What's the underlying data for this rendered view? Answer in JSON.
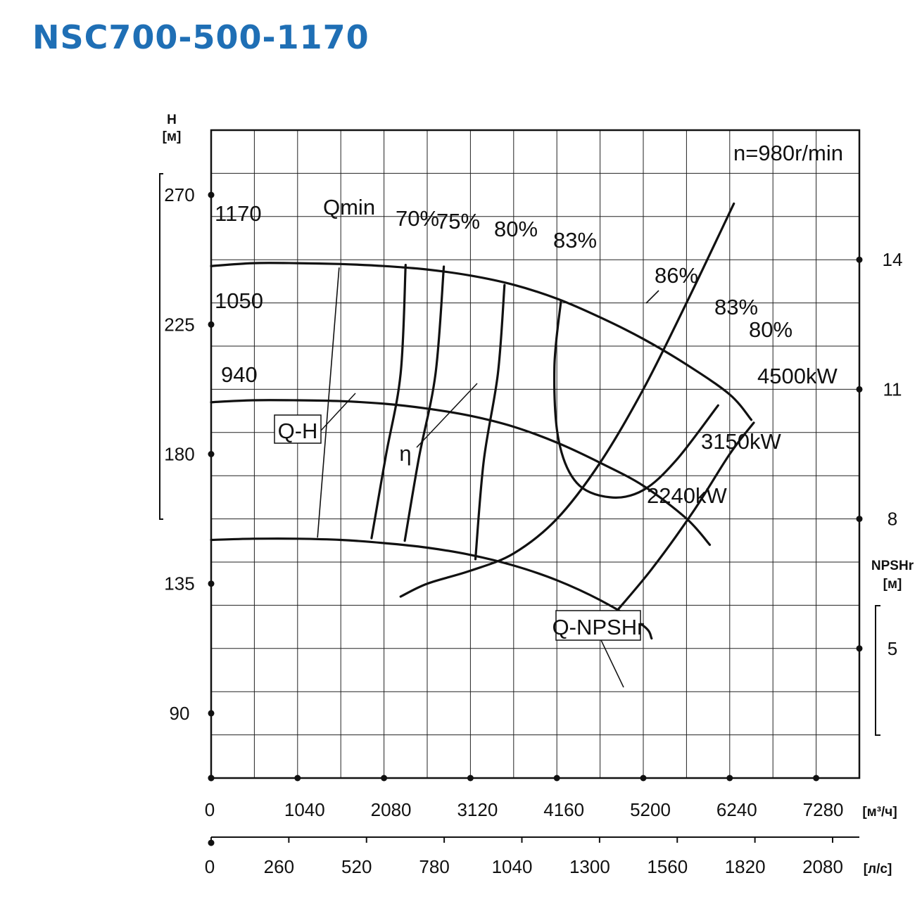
{
  "title": "NSC700-500-1170",
  "chart_data": {
    "type": "line",
    "speed_label": "n=980r/min",
    "axes": {
      "head": {
        "label": "H",
        "unit": "[м]",
        "ticks": [
          "270",
          "225",
          "180",
          "135",
          "90"
        ],
        "range": [
          67.5,
          292.5
        ]
      },
      "npsh": {
        "label": "NPSHr",
        "unit": "[м]",
        "ticks": [
          "14",
          "11",
          "8",
          "5"
        ],
        "range": [
          2,
          17
        ]
      },
      "flow_m3h": {
        "unit": "[м³/ч]",
        "ticks": [
          "0",
          "1040",
          "2080",
          "3120",
          "4160",
          "5200",
          "6240",
          "7280"
        ],
        "range": [
          0,
          7800
        ]
      },
      "flow_ls": {
        "unit": "[л/с]",
        "ticks": [
          "0",
          "260",
          "520",
          "780",
          "1040",
          "1300",
          "1560",
          "1820",
          "2080"
        ],
        "range": [
          0,
          2080
        ]
      }
    },
    "grid": true,
    "series": [
      {
        "name": "1170",
        "kind": "Q-H",
        "x": [
          0,
          500,
          1040,
          1560,
          2080,
          2600,
          3120,
          3640,
          4160,
          4680,
          5200,
          5720,
          6240,
          6500
        ],
        "y": [
          245.3,
          246.3,
          246.3,
          246.0,
          245.3,
          244.1,
          242.0,
          238.8,
          234.0,
          227.5,
          220.0,
          211.1,
          200.7,
          191.9
        ]
      },
      {
        "name": "1050",
        "kind": "Q-H",
        "x": [
          0,
          500,
          1040,
          1560,
          2080,
          2600,
          3120,
          3640,
          4160,
          4680,
          5200,
          5720,
          6000
        ],
        "y": [
          198.0,
          198.7,
          198.7,
          198.4,
          197.5,
          195.8,
          193.3,
          189.5,
          184.0,
          177.0,
          169.0,
          157.6,
          148.5
        ]
      },
      {
        "name": "940",
        "kind": "Q-H",
        "x": [
          0,
          500,
          1040,
          1560,
          2080,
          2600,
          3120,
          3640,
          4160,
          4680,
          5200,
          5300
        ],
        "y": [
          150.2,
          150.6,
          150.6,
          150.2,
          149.1,
          147.5,
          145.0,
          141.3,
          136.2,
          129.3,
          120.4,
          116.0
        ]
      },
      {
        "name": "Q-NPSHr",
        "kind": "Q-NPSHr",
        "x": [
          2280,
          2600,
          3120,
          3640,
          4160,
          4680,
          5200,
          5720,
          6290
        ],
        "y": [
          6.2,
          6.5,
          6.8,
          7.2,
          8.0,
          9.3,
          11.0,
          13.0,
          15.3
        ]
      }
    ],
    "efficiency_lines": [
      {
        "name": "70%",
        "x": [
          1930,
          2100,
          2280,
          2340
        ],
        "y": [
          150.8,
          179.1,
          207.9,
          245.7
        ]
      },
      {
        "name": "75%",
        "x": [
          2330,
          2500,
          2700,
          2800
        ],
        "y": [
          149.9,
          178.7,
          207.9,
          245.1
        ]
      },
      {
        "name": "80%",
        "x": [
          3180,
          3280,
          3450,
          3530
        ],
        "y": [
          143.5,
          177.6,
          207.9,
          238.7
        ]
      }
    ],
    "efficiency_contours": [
      {
        "name": "83%",
        "x": [
          4210,
          4130,
          4180,
          4400,
          4800,
          5200,
          5600,
          6100
        ],
        "y": [
          233.3,
          210.0,
          185.0,
          170.0,
          165.0,
          167.5,
          178.0,
          196.9
        ]
      },
      {
        "name": "80%",
        "x": [
          4850,
          5300,
          5800,
          6240,
          6530
        ],
        "y": [
          124.5,
          140.0,
          160.0,
          180.0,
          190.9
        ]
      }
    ],
    "qmin_line": {
      "x": [
        1280,
        1540
      ],
      "y": [
        151.0,
        244.8
      ]
    },
    "power_labels": [
      "4500kW",
      "3150kW",
      "2240kW"
    ],
    "annotations": [
      "Qmin",
      "70%",
      "75%",
      "80%",
      "83%",
      "86%",
      "83%",
      "80%",
      "Q-H",
      "η",
      "Q-NPSHr"
    ]
  }
}
